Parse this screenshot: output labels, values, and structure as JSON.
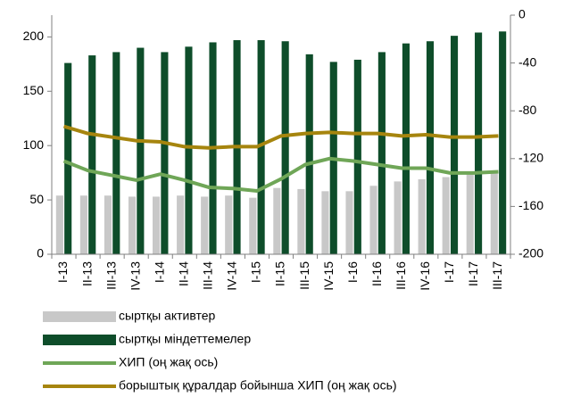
{
  "chart_data": {
    "type": "bar_line",
    "categories": [
      "I-13",
      "II-13",
      "III-13",
      "IV-13",
      "I-14",
      "II-14",
      "III-14",
      "IV-14",
      "I-15",
      "II-15",
      "III-15",
      "IV-15",
      "I-16",
      "II-16",
      "III-16",
      "IV-16",
      "I-17",
      "II-17",
      "III-17"
    ],
    "series": [
      {
        "name": "сыртқы активтер",
        "type": "bar",
        "color": "#c8c8c8",
        "values": [
          54,
          54,
          54,
          53,
          53,
          54,
          53,
          54,
          52,
          61,
          60,
          58,
          58,
          63,
          67,
          69,
          71,
          74,
          75
        ]
      },
      {
        "name": "сыртқы міндеттемелер",
        "type": "bar",
        "color": "#0e4d2a",
        "values": [
          176,
          183,
          186,
          190,
          186,
          191,
          195,
          197,
          197,
          196,
          184,
          177,
          179,
          186,
          194,
          196,
          201,
          204,
          205
        ]
      },
      {
        "name": "ХИП (оң жақ ось)",
        "type": "line",
        "axis": "y2",
        "color": "#6fa657",
        "values": [
          -122,
          -130,
          -134,
          -138,
          -133,
          -138,
          -144,
          -145,
          -147,
          -137,
          -125,
          -120,
          -122,
          -125,
          -128,
          -128,
          -132,
          -132,
          -131
        ]
      },
      {
        "name": "борыштық құралдар бойынша ХИП  (оң жақ ось)",
        "type": "line",
        "axis": "y2",
        "color": "#a6850e",
        "values": [
          -93,
          -99,
          -102,
          -105,
          -106,
          -110,
          -111,
          -110,
          -110,
          -101,
          -99,
          -98,
          -99,
          -99,
          -101,
          -100,
          -102,
          -102,
          -101
        ]
      }
    ],
    "ylim": [
      0,
      220
    ],
    "yticks": [
      0,
      50,
      100,
      150,
      200
    ],
    "y2lim": [
      -200,
      0
    ],
    "y2ticks": [
      -200,
      -160,
      -120,
      -80,
      -40,
      0
    ],
    "grid": false,
    "legend": "bottom"
  }
}
